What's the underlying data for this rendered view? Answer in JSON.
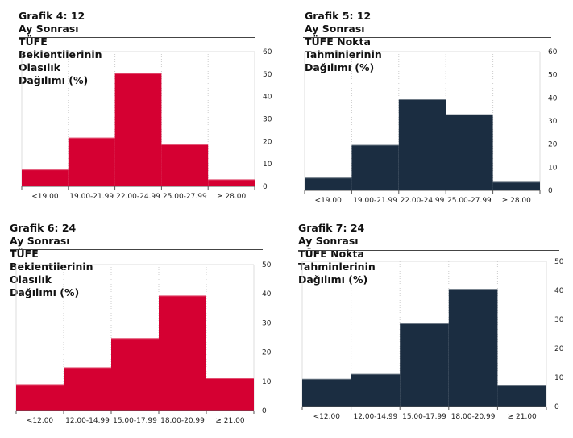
{
  "colors": {
    "red": "#d50032",
    "navy": "#1b2d41",
    "grid": "#dddddd",
    "axis": "#555555"
  },
  "chart_data": [
    {
      "type": "bar",
      "title_line1": "Grafik 4: 12 Ay Sonrası TÜFE Beklentilerinin",
      "title_line2": "Olasılık Dağılımı (%)",
      "categories": [
        "<19.00",
        "19.00-21.99",
        "22.00-24.99",
        "25.00-27.99",
        "≥ 28.00"
      ],
      "values": [
        7.5,
        21.7,
        50.4,
        18.7,
        3.1
      ],
      "ylim": [
        0,
        60
      ],
      "yticks": [
        "0",
        "10",
        "20",
        "30",
        "40",
        "50",
        "60"
      ],
      "ytick_values": [
        0,
        10,
        20,
        30,
        40,
        50,
        60
      ],
      "color": "#d50032",
      "grid": true
    },
    {
      "type": "bar",
      "title_line1": "Grafik 5: 12 Ay Sonrası TÜFE Nokta",
      "title_line2": "Tahminlerinin Dağılımı (%)",
      "categories": [
        "<19.00",
        "19.00-21.99",
        "22.00-24.99",
        "25.00-27.99",
        "≥ 28.00"
      ],
      "values": [
        5.5,
        19.7,
        39.4,
        32.9,
        3.7
      ],
      "ylim": [
        0,
        60
      ],
      "yticks": [
        "0",
        "10",
        "20",
        "30",
        "40",
        "50",
        "60"
      ],
      "ytick_values": [
        0,
        10,
        20,
        30,
        40,
        50,
        60
      ],
      "color": "#1b2d41",
      "grid": true
    },
    {
      "type": "bar",
      "title_line1": "Grafik 6: 24 Ay Sonrası TÜFE Beklentilerinin",
      "title_line2": "Olasılık Dağılımı (%)",
      "categories": [
        "<12.00",
        "12.00-14.99",
        "15.00-17.99",
        "18.00-20.99",
        "≥ 21.00"
      ],
      "values": [
        9.0,
        14.8,
        24.8,
        39.4,
        11.1
      ],
      "ylim": [
        0,
        50
      ],
      "yticks": [
        "0",
        "10",
        "20",
        "30",
        "40",
        "50"
      ],
      "ytick_values": [
        0,
        10,
        20,
        30,
        40,
        50
      ],
      "color": "#d50032",
      "grid": true
    },
    {
      "type": "bar",
      "title_line1": "Grafik 7: 24 Ay Sonrası TÜFE Nokta Tahminlerinin",
      "title_line2": "Dağılımı (%)",
      "categories": [
        "<12.00",
        "12.00-14.99",
        "15.00-17.99",
        "18.00-20.99",
        "≥ 21.00"
      ],
      "values": [
        9.5,
        11.2,
        28.6,
        40.5,
        7.5
      ],
      "ylim": [
        0,
        50
      ],
      "yticks": [
        "0",
        "10",
        "20",
        "30",
        "40",
        "50"
      ],
      "ytick_values": [
        0,
        10,
        20,
        30,
        40,
        50
      ],
      "color": "#1b2d41",
      "grid": true
    }
  ]
}
